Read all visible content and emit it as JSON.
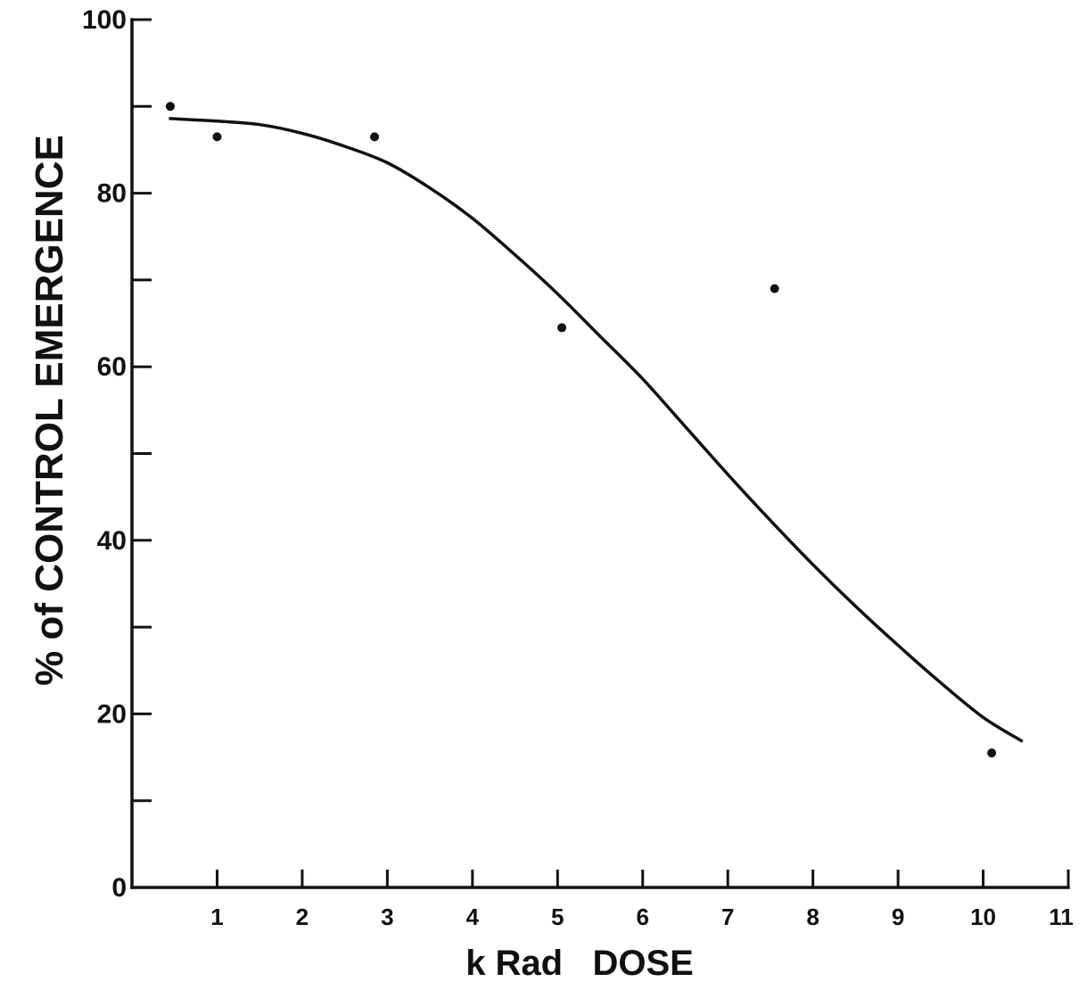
{
  "chart_data": {
    "type": "scatter",
    "title": "",
    "xlabel": "k Rad   DOSE",
    "ylabel": "% of CONTROL EMERGENCE",
    "xlim": [
      0,
      11
    ],
    "ylim": [
      0,
      100
    ],
    "x_ticks": [
      1,
      2,
      3,
      4,
      5,
      6,
      7,
      8,
      9,
      10,
      11
    ],
    "x_tick_labels": [
      "1",
      "2",
      "3",
      "4",
      "5",
      "6",
      "7",
      "8",
      "9",
      "10",
      "11"
    ],
    "y_ticks": [
      0,
      10,
      20,
      30,
      40,
      50,
      60,
      70,
      80,
      90,
      100
    ],
    "y_tick_labels": [
      "0",
      "",
      "20",
      "",
      "40",
      "",
      "60",
      "",
      "80",
      "",
      "100"
    ],
    "grid": false,
    "points": [
      {
        "x": 0.45,
        "y": 90
      },
      {
        "x": 1.0,
        "y": 86.5
      },
      {
        "x": 2.85,
        "y": 86.5
      },
      {
        "x": 5.05,
        "y": 64.5
      },
      {
        "x": 7.55,
        "y": 69
      },
      {
        "x": 10.1,
        "y": 15.5
      }
    ],
    "fit_curve": [
      {
        "x": 0.45,
        "y": 88.6
      },
      {
        "x": 1.0,
        "y": 88.3
      },
      {
        "x": 1.5,
        "y": 87.9
      },
      {
        "x": 2.0,
        "y": 86.9
      },
      {
        "x": 2.5,
        "y": 85.4
      },
      {
        "x": 3.0,
        "y": 83.5
      },
      {
        "x": 3.5,
        "y": 80.6
      },
      {
        "x": 4.0,
        "y": 77.1
      },
      {
        "x": 4.5,
        "y": 72.9
      },
      {
        "x": 5.0,
        "y": 68.4
      },
      {
        "x": 5.5,
        "y": 63.5
      },
      {
        "x": 6.0,
        "y": 58.6
      },
      {
        "x": 6.5,
        "y": 53.1
      },
      {
        "x": 7.0,
        "y": 47.6
      },
      {
        "x": 7.5,
        "y": 42.3
      },
      {
        "x": 8.0,
        "y": 37.2
      },
      {
        "x": 8.5,
        "y": 32.4
      },
      {
        "x": 9.0,
        "y": 27.9
      },
      {
        "x": 9.5,
        "y": 23.6
      },
      {
        "x": 10.0,
        "y": 19.6
      },
      {
        "x": 10.45,
        "y": 16.9
      }
    ],
    "colors": {
      "ink": "#111111",
      "background": "#ffffff"
    }
  }
}
